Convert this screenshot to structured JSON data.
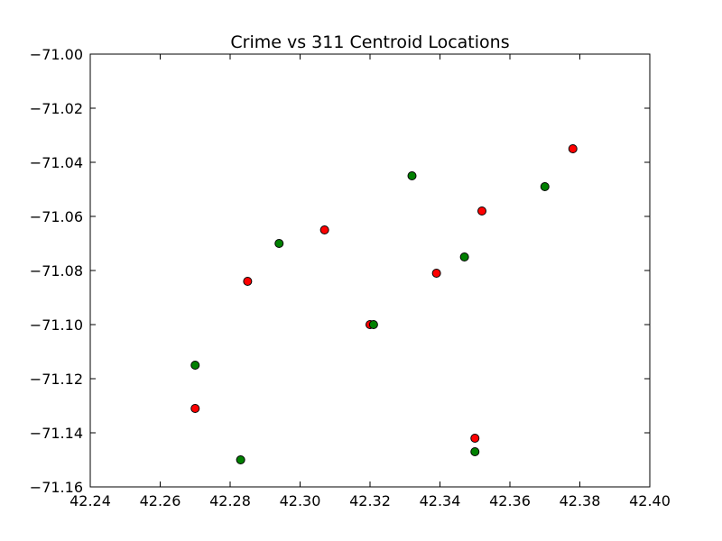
{
  "chart_data": {
    "type": "scatter",
    "title": "Crime vs 311 Centroid Locations",
    "xlabel": "",
    "ylabel": "",
    "xlim": [
      42.24,
      42.4
    ],
    "ylim": [
      -71.16,
      -71.0
    ],
    "xticks": [
      "42.24",
      "42.26",
      "42.28",
      "42.30",
      "42.32",
      "42.34",
      "42.36",
      "42.38",
      "42.40"
    ],
    "yticks": [
      "−71.00",
      "−71.02",
      "−71.04",
      "−71.06",
      "−71.08",
      "−71.10",
      "−71.12",
      "−71.14",
      "−71.16"
    ],
    "xtick_values": [
      42.24,
      42.26,
      42.28,
      42.3,
      42.32,
      42.34,
      42.36,
      42.38,
      42.4
    ],
    "ytick_values": [
      -71.0,
      -71.02,
      -71.04,
      -71.06,
      -71.08,
      -71.1,
      -71.12,
      -71.14,
      -71.16
    ],
    "grid": false,
    "series": [
      {
        "color": "#ff0000",
        "x": [
          42.378,
          42.352,
          42.307,
          42.339,
          42.285,
          42.32,
          42.27,
          42.35
        ],
        "y": [
          -71.035,
          -71.058,
          -71.065,
          -71.081,
          -71.084,
          -71.1,
          -71.131,
          -71.142
        ]
      },
      {
        "color": "#008000",
        "x": [
          42.332,
          42.37,
          42.294,
          42.347,
          42.321,
          42.27,
          42.35,
          42.283
        ],
        "y": [
          -71.045,
          -71.049,
          -71.07,
          -71.075,
          -71.1,
          -71.115,
          -71.147,
          -71.15
        ]
      }
    ]
  }
}
